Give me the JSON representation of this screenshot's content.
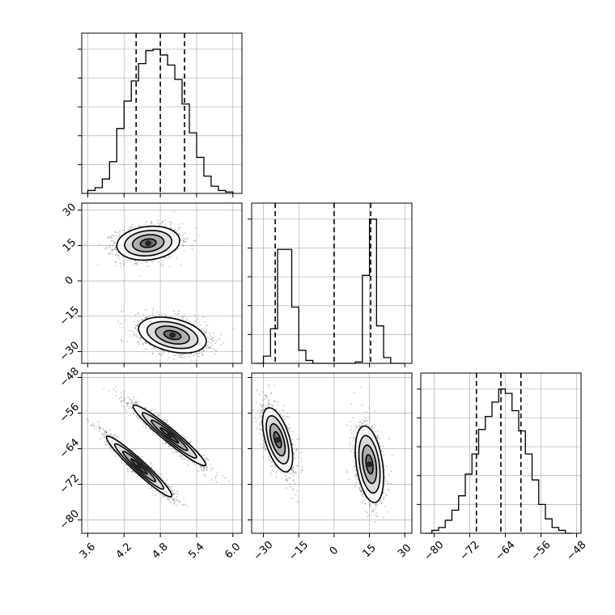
{
  "chart_data": {
    "type": "corner",
    "title": "",
    "parameters": [
      {
        "label": "",
        "range": [
          3.5,
          6.15
        ],
        "ticks": [
          3.6,
          4.2,
          4.8,
          5.4,
          6.0
        ],
        "tick_labels": [
          "3.6",
          "4.2",
          "4.8",
          "5.4",
          "6.0"
        ],
        "quantiles": [
          4.4,
          4.8,
          5.2
        ],
        "histogram": {
          "edges": [
            3.6,
            3.72,
            3.84,
            3.96,
            4.08,
            4.2,
            4.32,
            4.44,
            4.56,
            4.68,
            4.8,
            4.92,
            5.04,
            5.16,
            5.28,
            5.4,
            5.52,
            5.64,
            5.76,
            5.88,
            6.0
          ],
          "counts": [
            0.02,
            0.04,
            0.1,
            0.22,
            0.45,
            0.64,
            0.78,
            0.9,
            0.99,
            1.0,
            0.96,
            0.89,
            0.79,
            0.62,
            0.42,
            0.25,
            0.12,
            0.05,
            0.02,
            0.01
          ]
        }
      },
      {
        "label": "",
        "range": [
          -35,
          33
        ],
        "ticks": [
          -30,
          -15,
          0,
          15,
          30
        ],
        "tick_labels": [
          "−30",
          "−15",
          "0",
          "15",
          "30"
        ],
        "quantiles": [
          -25,
          0,
          15.5
        ],
        "histogram": {
          "edges": [
            -33,
            -30,
            -27,
            -24,
            -21,
            -18,
            -15,
            -12,
            -9,
            -6,
            -3,
            0,
            3,
            6,
            9,
            12,
            15,
            18,
            21,
            24,
            27,
            30
          ],
          "counts": [
            0.0,
            0.05,
            0.24,
            0.79,
            0.79,
            0.39,
            0.09,
            0.02,
            0.0,
            0.0,
            0.0,
            0.0,
            0.0,
            0.0,
            0.01,
            0.61,
            1.0,
            0.26,
            0.04,
            0.0,
            0.0
          ]
        }
      },
      {
        "label": "",
        "range": [
          -83,
          -47
        ],
        "ticks": [
          -80,
          -72,
          -64,
          -56,
          -48
        ],
        "tick_labels": [
          "−80",
          "−72",
          "−64",
          "−56",
          "−48"
        ],
        "quantiles": [
          -70.5,
          -65,
          -60.5
        ],
        "histogram": {
          "edges": [
            -82,
            -80.5,
            -79,
            -77.5,
            -76,
            -74.5,
            -73,
            -71.5,
            -70,
            -68.5,
            -67,
            -65.5,
            -64,
            -62.5,
            -61,
            -59.5,
            -58,
            -56.5,
            -55,
            -53.5,
            -52,
            -50.5,
            -49
          ],
          "counts": [
            0.0,
            0.02,
            0.04,
            0.09,
            0.16,
            0.26,
            0.41,
            0.55,
            0.72,
            0.81,
            0.91,
            1.0,
            0.97,
            0.85,
            0.71,
            0.55,
            0.37,
            0.2,
            0.1,
            0.04,
            0.02,
            0.0
          ]
        }
      }
    ],
    "density_clusters": [
      {
        "pair": [
          0,
          1
        ],
        "mean": [
          4.6,
          16
        ],
        "sd": [
          0.26,
          3.6
        ],
        "rho": 0.15,
        "n": 1500
      },
      {
        "pair": [
          0,
          1
        ],
        "mean": [
          5.0,
          -23
        ],
        "sd": [
          0.28,
          3.8
        ],
        "rho": -0.35,
        "n": 1500
      },
      {
        "pair": [
          0,
          2
        ],
        "mean": [
          4.95,
          -61
        ],
        "sd": [
          0.3,
          3.4
        ],
        "rho": -0.96,
        "n": 1500
      },
      {
        "pair": [
          0,
          2
        ],
        "mean": [
          4.45,
          -68
        ],
        "sd": [
          0.27,
          3.4
        ],
        "rho": -0.96,
        "n": 1500
      },
      {
        "pair": [
          1,
          2
        ],
        "mean": [
          -24,
          -62
        ],
        "sd": [
          3.2,
          3.6
        ],
        "rho": -0.55,
        "n": 1500
      },
      {
        "pair": [
          1,
          2
        ],
        "mean": [
          15,
          -67.5
        ],
        "sd": [
          3.0,
          4.3
        ],
        "rho": -0.35,
        "n": 1500
      }
    ],
    "contour_levels_sigma": [
      0.5,
      1.0,
      1.5,
      2.0
    ],
    "grid": true
  }
}
